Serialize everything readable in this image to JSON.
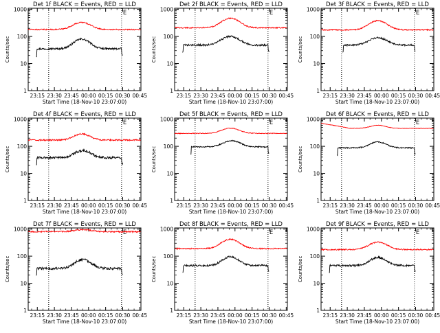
{
  "figure": {
    "y_axis_label": "Counts/sec",
    "x_axis_label": "Start Time (18-Nov-10 23:07:00)",
    "colors": {
      "events": "#000000",
      "lld": "#ff0000",
      "axes": "#000000"
    }
  },
  "chart_data": [
    {
      "type": "line",
      "title": "Det 1f BLACK = Events, RED = LLD",
      "xlabel": "Start Time (18-Nov-10 23:07:00)",
      "ylabel": "Counts/sec",
      "y_scale": "log",
      "ylim": [
        1,
        1100
      ],
      "xlim": [
        "23:07",
        "00:46"
      ],
      "x_ticks": [
        "23:15",
        "23:30",
        "23:45",
        "00:00",
        "00:15",
        "00:30",
        "00:45"
      ],
      "y_ticks": [
        "1",
        "10",
        "100",
        "1000"
      ],
      "markers": [
        {
          "time": "23:25",
          "label": ""
        },
        {
          "time": "00:29",
          "label": "E"
        }
      ],
      "series": [
        {
          "name": "BLACK = Events",
          "color": "#000000",
          "t_start": "23:14",
          "t_end": "00:30",
          "base": 35,
          "peak": 80,
          "peak_time": "23:54",
          "peak_width_min": 9,
          "noise": 0.08
        },
        {
          "name": "RED = LLD",
          "color": "#ff0000",
          "t_start": "23:07",
          "t_end": "00:46",
          "base": 180,
          "peak": 330,
          "peak_time": "23:54",
          "peak_width_min": 10,
          "noise": 0.05
        }
      ]
    },
    {
      "type": "line",
      "title": "Det 2f BLACK = Events, RED = LLD",
      "xlabel": "Start Time (18-Nov-10 23:07:00)",
      "ylabel": "Counts/sec",
      "y_scale": "log",
      "ylim": [
        1,
        1100
      ],
      "xlim": [
        "23:07",
        "00:46"
      ],
      "x_ticks": [
        "23:15",
        "23:30",
        "23:45",
        "00:00",
        "00:15",
        "00:30",
        "00:45"
      ],
      "y_ticks": [
        "1",
        "10",
        "100",
        "1000"
      ],
      "markers": [
        {
          "time": "23:25",
          "label": ""
        },
        {
          "time": "00:29",
          "label": "E"
        }
      ],
      "series": [
        {
          "name": "BLACK = Events",
          "color": "#000000",
          "t_start": "23:14",
          "t_end": "00:30",
          "base": 48,
          "peak": 100,
          "peak_time": "23:56",
          "peak_width_min": 10,
          "noise": 0.08
        },
        {
          "name": "RED = LLD",
          "color": "#ff0000",
          "t_start": "23:07",
          "t_end": "00:46",
          "base": 210,
          "peak": 470,
          "peak_time": "23:56",
          "peak_width_min": 10,
          "noise": 0.05
        }
      ]
    },
    {
      "type": "line",
      "title": "Det 3f BLACK = Events, RED = LLD",
      "xlabel": "Start Time (18-Nov-10 23:07:00)",
      "ylabel": "Counts/sec",
      "y_scale": "log",
      "ylim": [
        1,
        1100
      ],
      "xlim": [
        "23:07",
        "00:46"
      ],
      "x_ticks": [
        "23:15",
        "23:30",
        "23:45",
        "00:00",
        "00:15",
        "00:30",
        "00:45"
      ],
      "y_ticks": [
        "1",
        "10",
        "100",
        "1000"
      ],
      "markers": [
        {
          "time": "23:25",
          "label": ""
        },
        {
          "time": "00:29",
          "label": "E"
        }
      ],
      "series": [
        {
          "name": "BLACK = Events",
          "color": "#000000",
          "t_start": "23:26",
          "t_end": "00:30",
          "base": 48,
          "peak": 90,
          "peak_time": "23:57",
          "peak_width_min": 10,
          "noise": 0.07
        },
        {
          "name": "RED = LLD",
          "color": "#ff0000",
          "t_start": "23:07",
          "t_end": "00:46",
          "base": 175,
          "peak": 380,
          "peak_time": "23:57",
          "peak_width_min": 10,
          "noise": 0.05
        }
      ]
    },
    {
      "type": "line",
      "title": "Det 4f BLACK = Events, RED = LLD",
      "xlabel": "Start Time (18-Nov-10 23:07:00)",
      "ylabel": "Counts/sec",
      "y_scale": "log",
      "ylim": [
        1,
        1100
      ],
      "xlim": [
        "23:07",
        "00:46"
      ],
      "x_ticks": [
        "23:15",
        "23:30",
        "23:45",
        "00:00",
        "00:15",
        "00:30",
        "00:45"
      ],
      "y_ticks": [
        "1",
        "10",
        "100",
        "1000"
      ],
      "markers": [
        {
          "time": "23:25",
          "label": ""
        },
        {
          "time": "00:29",
          "label": "E"
        }
      ],
      "series": [
        {
          "name": "BLACK = Events",
          "color": "#000000",
          "t_start": "23:14",
          "t_end": "00:30",
          "base": 38,
          "peak": 70,
          "peak_time": "23:55",
          "peak_width_min": 9,
          "noise": 0.1
        },
        {
          "name": "RED = LLD",
          "color": "#ff0000",
          "t_start": "23:07",
          "t_end": "00:46",
          "base": 170,
          "peak": 290,
          "peak_time": "23:54",
          "peak_width_min": 9,
          "noise": 0.06
        }
      ]
    },
    {
      "type": "line",
      "title": "Det 5f BLACK = Events, RED = LLD",
      "xlabel": "Start Time (18-Nov-10 23:07:00)",
      "ylabel": "Counts/sec",
      "y_scale": "log",
      "ylim": [
        1,
        1100
      ],
      "xlim": [
        "23:07",
        "00:46"
      ],
      "x_ticks": [
        "23:15",
        "23:30",
        "23:45",
        "00:00",
        "00:15",
        "00:30",
        "00:45"
      ],
      "y_ticks": [
        "1",
        "10",
        "100",
        "1000"
      ],
      "markers": [
        {
          "time": "23:25",
          "label": ""
        },
        {
          "time": "00:29",
          "label": "E"
        }
      ],
      "series": [
        {
          "name": "BLACK = Events",
          "color": "#000000",
          "t_start": "23:21",
          "t_end": "00:30",
          "base": 95,
          "peak": 160,
          "peak_time": "23:57",
          "peak_width_min": 10,
          "noise": 0.05
        },
        {
          "name": "RED = LLD",
          "color": "#ff0000",
          "t_start": "23:07",
          "t_end": "00:46",
          "base": 300,
          "peak": 470,
          "peak_time": "23:56",
          "peak_width_min": 10,
          "noise": 0.03
        }
      ]
    },
    {
      "type": "line",
      "title": "Det 6f BLACK = Events, RED = LLD",
      "xlabel": "Start Time (18-Nov-10 23:07:00)",
      "ylabel": "Counts/sec",
      "y_scale": "log",
      "ylim": [
        1,
        1100
      ],
      "xlim": [
        "23:07",
        "00:46"
      ],
      "x_ticks": [
        "23:15",
        "23:30",
        "23:45",
        "00:00",
        "00:15",
        "00:30",
        "00:45"
      ],
      "y_ticks": [
        "1",
        "10",
        "100",
        "1000"
      ],
      "markers": [
        {
          "time": "23:25",
          "label": ""
        },
        {
          "time": "00:29",
          "label": "E"
        }
      ],
      "series": [
        {
          "name": "BLACK = Events",
          "color": "#000000",
          "t_start": "23:21",
          "t_end": "00:30",
          "base": 88,
          "peak": 145,
          "peak_time": "23:57",
          "peak_width_min": 9,
          "noise": 0.05
        },
        {
          "name": "RED = LLD",
          "color": "#ff0000",
          "t_start": "23:07",
          "t_end": "00:46",
          "base": 460,
          "peak": 600,
          "peak_time": "23:57",
          "peak_width_min": 9,
          "noise": 0.02,
          "start_value": 700
        }
      ]
    },
    {
      "type": "line",
      "title": "Det 7f BLACK = Events, RED = LLD",
      "xlabel": "Start Time (18-Nov-10 23:07:00)",
      "ylabel": "Counts/sec",
      "y_scale": "log",
      "ylim": [
        1,
        1100
      ],
      "xlim": [
        "23:07",
        "00:46"
      ],
      "x_ticks": [
        "23:15",
        "23:30",
        "23:45",
        "00:00",
        "00:15",
        "00:30",
        "00:45"
      ],
      "y_ticks": [
        "1",
        "10",
        "100",
        "1000"
      ],
      "markers": [
        {
          "time": "23:25",
          "label": ""
        },
        {
          "time": "00:29",
          "label": "E"
        }
      ],
      "series": [
        {
          "name": "BLACK = Events",
          "color": "#000000",
          "t_start": "23:14",
          "t_end": "00:30",
          "base": 35,
          "peak": 75,
          "peak_time": "23:55",
          "peak_width_min": 9,
          "noise": 0.1
        },
        {
          "name": "RED = LLD",
          "color": "#ff0000",
          "t_start": "23:07",
          "t_end": "00:46",
          "base": 800,
          "peak": 950,
          "peak_time": "23:55",
          "peak_width_min": 10,
          "noise": 0.06
        }
      ]
    },
    {
      "type": "line",
      "title": "Det 8f BLACK = Events, RED = LLD",
      "xlabel": "Start Time (18-Nov-10 23:07:00)",
      "ylabel": "Counts/sec",
      "y_scale": "log",
      "ylim": [
        1,
        1100
      ],
      "xlim": [
        "23:07",
        "00:46"
      ],
      "x_ticks": [
        "23:15",
        "23:30",
        "23:45",
        "00:00",
        "00:15",
        "00:30",
        "00:45"
      ],
      "y_ticks": [
        "1",
        "10",
        "100",
        "1000"
      ],
      "markers": [
        {
          "time": "23:25",
          "label": ""
        },
        {
          "time": "00:29",
          "label": "E"
        }
      ],
      "series": [
        {
          "name": "BLACK = Events",
          "color": "#000000",
          "t_start": "23:14",
          "t_end": "00:30",
          "base": 45,
          "peak": 95,
          "peak_time": "23:56",
          "peak_width_min": 9,
          "noise": 0.08
        },
        {
          "name": "RED = LLD",
          "color": "#ff0000",
          "t_start": "23:07",
          "t_end": "00:46",
          "base": 190,
          "peak": 420,
          "peak_time": "23:56",
          "peak_width_min": 10,
          "noise": 0.05
        }
      ]
    },
    {
      "type": "line",
      "title": "Det 9f BLACK = Events, RED = LLD",
      "xlabel": "Start Time (18-Nov-10 23:07:00)",
      "ylabel": "Counts/sec",
      "y_scale": "log",
      "ylim": [
        1,
        1100
      ],
      "xlim": [
        "23:07",
        "00:46"
      ],
      "x_ticks": [
        "23:15",
        "23:30",
        "23:45",
        "00:00",
        "00:15",
        "00:30",
        "00:45"
      ],
      "y_ticks": [
        "1",
        "10",
        "100",
        "1000"
      ],
      "markers": [
        {
          "time": "23:25",
          "label": ""
        },
        {
          "time": "00:29",
          "label": "E"
        }
      ],
      "series": [
        {
          "name": "BLACK = Events",
          "color": "#000000",
          "t_start": "23:14",
          "t_end": "00:30",
          "base": 45,
          "peak": 90,
          "peak_time": "23:57",
          "peak_width_min": 9,
          "noise": 0.08
        },
        {
          "name": "RED = LLD",
          "color": "#ff0000",
          "t_start": "23:07",
          "t_end": "00:46",
          "base": 175,
          "peak": 330,
          "peak_time": "23:57",
          "peak_width_min": 10,
          "noise": 0.05
        }
      ]
    }
  ]
}
